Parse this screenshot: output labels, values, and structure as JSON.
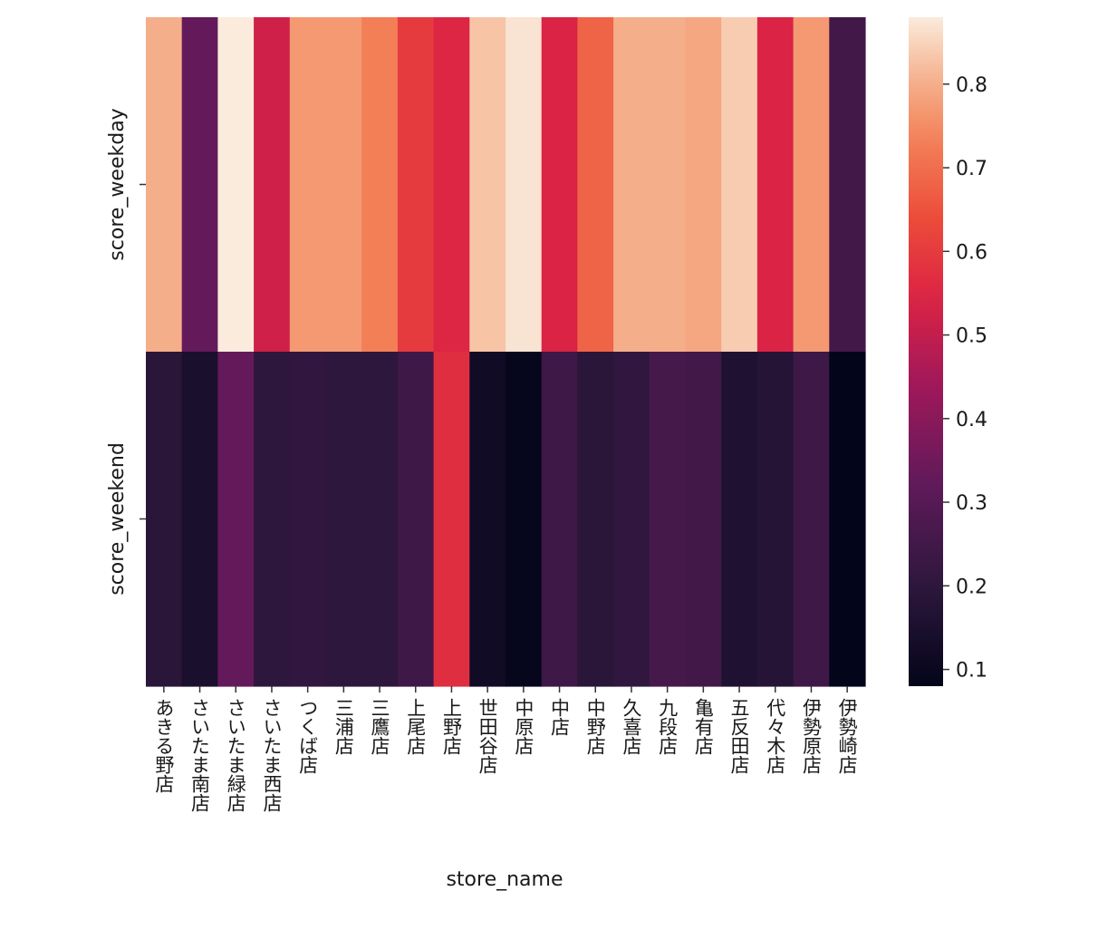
{
  "chart_data": {
    "type": "heatmap",
    "title": "",
    "xlabel": "store_name",
    "ylabel": "",
    "x_categories": [
      "あきる野店",
      "さいたま南店",
      "さいたま緑店",
      "さいたま西店",
      "つくば店",
      "三浦店",
      "三鷹店",
      "上尾店",
      "上野店",
      "世田谷店",
      "中原店",
      "中店",
      "中野店",
      "久喜店",
      "九段店",
      "亀有店",
      "五反田店",
      "代々木店",
      "伊勢原店",
      "伊勢崎店"
    ],
    "y_categories": [
      "score_weekday",
      "score_weekend"
    ],
    "values": [
      [
        0.8,
        0.33,
        0.88,
        0.52,
        0.77,
        0.77,
        0.73,
        0.6,
        0.55,
        0.83,
        0.87,
        0.54,
        0.68,
        0.8,
        0.8,
        0.79,
        0.84,
        0.54,
        0.77,
        0.25
      ],
      [
        0.19,
        0.15,
        0.33,
        0.2,
        0.21,
        0.2,
        0.2,
        0.24,
        0.57,
        0.12,
        0.09,
        0.24,
        0.19,
        0.21,
        0.26,
        0.25,
        0.16,
        0.18,
        0.24,
        0.08
      ]
    ],
    "colorscale": "rocket",
    "colorbar": {
      "range": [
        0.08,
        0.88
      ],
      "ticks": [
        0.1,
        0.2,
        0.3,
        0.4,
        0.5,
        0.6,
        0.7,
        0.8
      ],
      "tick_labels": [
        "0.1",
        "0.2",
        "0.3",
        "0.4",
        "0.5",
        "0.6",
        "0.7",
        "0.8"
      ]
    },
    "grid": false,
    "legend": "colorbar-right"
  }
}
